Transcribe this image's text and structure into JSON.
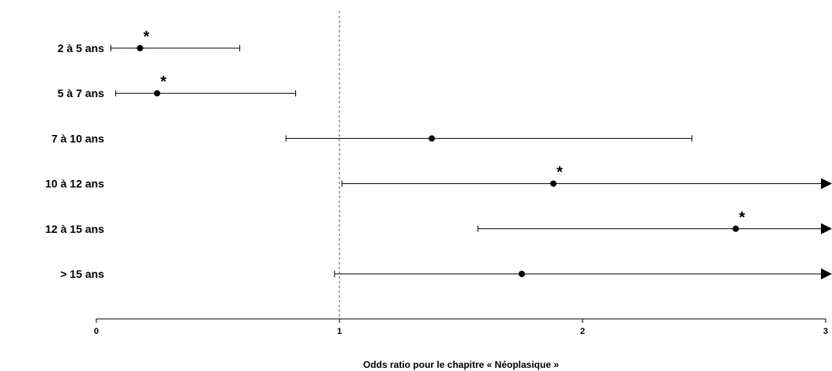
{
  "chart_data": {
    "type": "forest",
    "title": "",
    "xlabel": "Odds ratio pour le chapitre « Néoplasique »",
    "ylabel": "",
    "xlim": [
      0,
      3
    ],
    "x_ticks": [
      0,
      1,
      2,
      3
    ],
    "x_tick_labels": [
      "0",
      "1",
      "2",
      "3"
    ],
    "reference_line": 1,
    "reference_line_style": "dotted",
    "grid": false,
    "significance_marker": "*",
    "categories": [
      "2 à 5 ans",
      "5 à 7 ans",
      "7 à 10 ans",
      "10 à 12 ans",
      "12 à 15 ans",
      "> 15 ans"
    ],
    "series": [
      {
        "estimates": [
          0.18,
          0.25,
          1.38,
          1.88,
          2.63,
          1.75
        ],
        "ci_lower": [
          0.06,
          0.08,
          0.78,
          1.01,
          1.57,
          0.98
        ],
        "ci_upper": [
          0.59,
          0.82,
          2.45,
          3.0,
          3.0,
          3.0
        ],
        "upper_truncated": [
          false,
          false,
          false,
          true,
          true,
          true
        ],
        "significant": [
          true,
          true,
          false,
          true,
          true,
          false
        ]
      }
    ],
    "colors": {
      "marker": "#000000",
      "line": "#000000",
      "reference": "#555555"
    }
  }
}
